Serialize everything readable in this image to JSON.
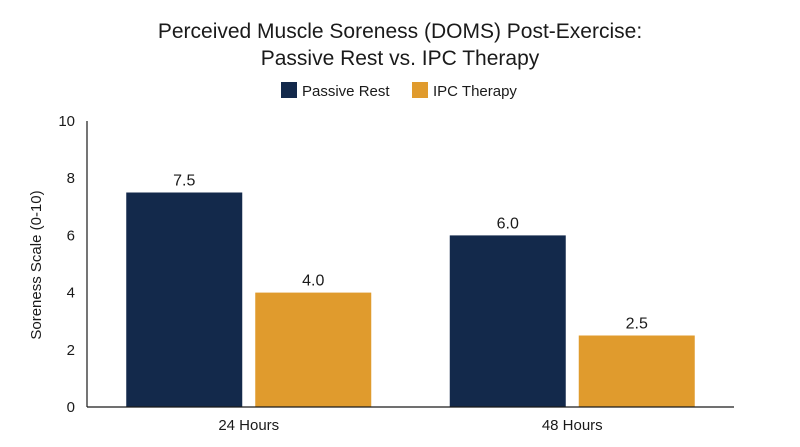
{
  "chart_data": {
    "type": "bar",
    "title_lines": [
      "Perceived Muscle Soreness (DOMS) Post-Exercise:",
      "Passive Rest vs. IPC Therapy"
    ],
    "xlabel": "",
    "ylabel": "Soreness Scale (0-10)",
    "ylim": [
      0,
      10
    ],
    "yticks": [
      0,
      2,
      4,
      6,
      8,
      10
    ],
    "categories": [
      "24 Hours",
      "48 Hours"
    ],
    "series": [
      {
        "name": "Passive Rest",
        "values": [
          7.5,
          6.0
        ],
        "labels": [
          "7.5",
          "6.0"
        ],
        "color": "#13294b"
      },
      {
        "name": "IPC Therapy",
        "values": [
          4.0,
          2.5
        ],
        "labels": [
          "4.0",
          "2.5"
        ],
        "color": "#e09b2d"
      }
    ],
    "legend_position": "top-center",
    "grid": false
  }
}
